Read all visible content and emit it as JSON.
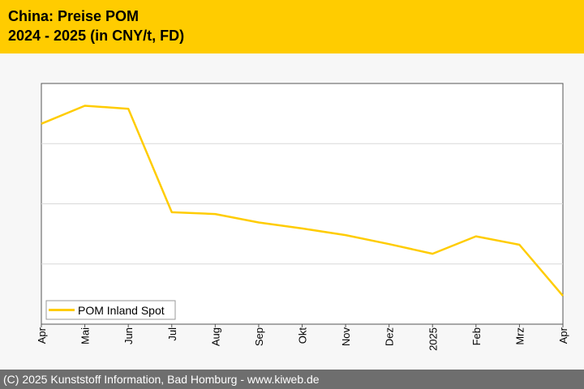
{
  "header": {
    "title_line1": "China: Preise POM",
    "title_line2": "2024 - 2025 (in CNY/t, FD)"
  },
  "footer": {
    "text": "(C) 2025 Kunststoff Information, Bad Homburg - www.kiweb.de"
  },
  "colors": {
    "header_bg": "#ffcc00",
    "series_line": "#ffcc00",
    "footer_bg": "#6e6e6e",
    "gridline": "#d9d9d9"
  },
  "chart_data": {
    "type": "line",
    "categories": [
      "Apr",
      "Mai",
      "Jun",
      "Jul",
      "Aug",
      "Sep",
      "Okt",
      "Nov",
      "Dez",
      "2025",
      "Feb",
      "Mrz",
      "Apr"
    ],
    "series": [
      {
        "name": "POM Inland Spot",
        "values": [
          3.33,
          3.63,
          3.58,
          1.86,
          1.83,
          1.69,
          1.59,
          1.48,
          1.33,
          1.17,
          1.46,
          1.32,
          0.47
        ]
      }
    ],
    "ylim": [
      0,
      4
    ],
    "y_tick_labels_shown": false,
    "grid": "horizontal",
    "legend": "bottom-left",
    "title": "",
    "xlabel": "",
    "ylabel": ""
  }
}
